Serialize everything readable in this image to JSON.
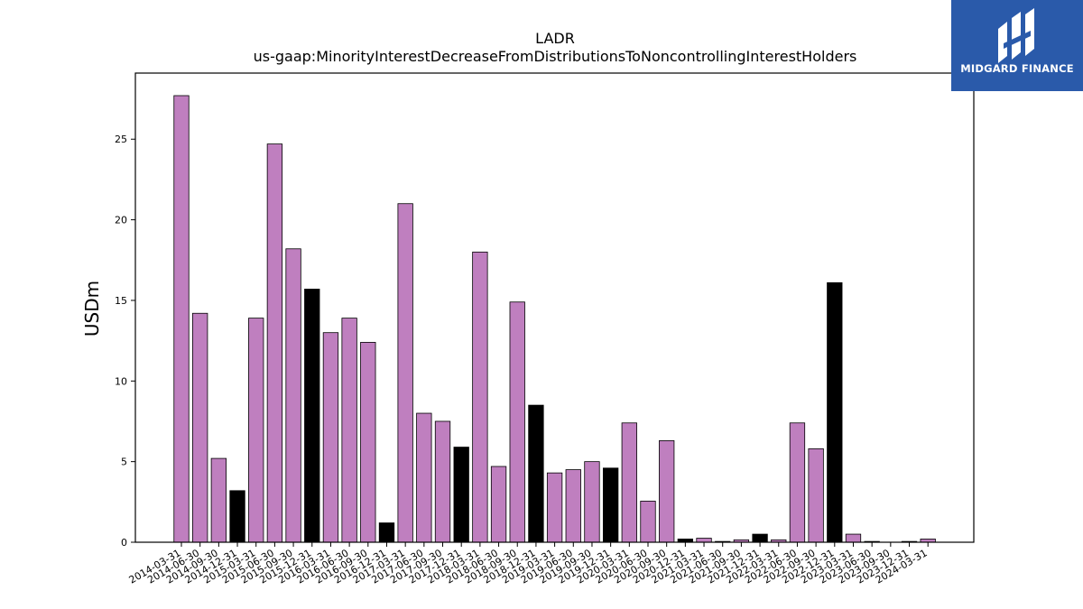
{
  "brand": {
    "name": "MIDGARD FINANCE",
    "bg": "#2a5aaa"
  },
  "chart_data": {
    "type": "bar",
    "title": "LADR",
    "subtitle": "us-gaap:MinorityInterestDecreaseFromDistributionsToNoncontrollingInterestHolders",
    "ylabel": "USDm",
    "xlabel": "",
    "ylim": [
      0,
      29
    ],
    "yticks": [
      0,
      5,
      10,
      15,
      20,
      25
    ],
    "grid": false,
    "colors": {
      "quarter": "#bf7fbf",
      "year_end": "#000000"
    },
    "categories": [
      "2014-03-31",
      "2014-06-30",
      "2014-09-30",
      "2014-12-31",
      "2015-03-31",
      "2015-06-30",
      "2015-09-30",
      "2015-12-31",
      "2016-03-31",
      "2016-06-30",
      "2016-09-30",
      "2016-12-31",
      "2017-03-31",
      "2017-06-30",
      "2017-09-30",
      "2017-12-31",
      "2018-03-31",
      "2018-06-30",
      "2018-09-30",
      "2018-12-31",
      "2019-03-31",
      "2019-06-30",
      "2019-09-30",
      "2019-12-31",
      "2020-03-31",
      "2020-06-30",
      "2020-09-30",
      "2020-12-31",
      "2021-03-31",
      "2021-06-30",
      "2021-09-30",
      "2021-12-31",
      "2022-03-31",
      "2022-06-30",
      "2022-09-30",
      "2022-12-31",
      "2023-03-31",
      "2023-06-30",
      "2023-09-30",
      "2023-12-31",
      "2024-03-31"
    ],
    "values": [
      27.7,
      14.2,
      5.2,
      3.2,
      13.9,
      24.7,
      18.2,
      15.7,
      13.0,
      13.9,
      12.4,
      1.2,
      21.0,
      8.0,
      7.5,
      5.9,
      18.0,
      4.7,
      14.9,
      8.5,
      4.3,
      4.5,
      5.0,
      4.6,
      7.4,
      2.55,
      6.3,
      0.2,
      0.25,
      0.05,
      0.15,
      0.5,
      0.15,
      7.4,
      5.8,
      16.1,
      0.5,
      0.05,
      0.0,
      0.05,
      0.2
    ]
  }
}
